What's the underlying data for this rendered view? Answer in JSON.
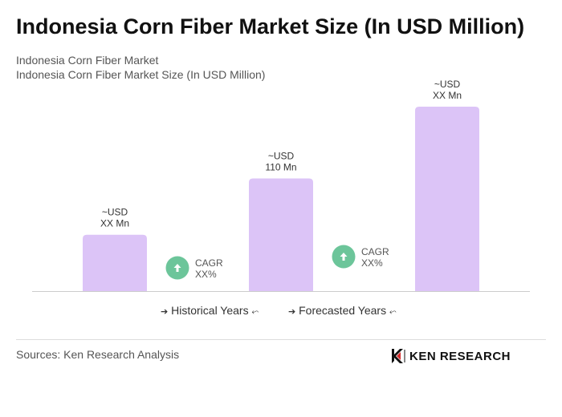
{
  "title": "Indonesia Corn Fiber Market Size (In USD Million)",
  "subtitle_line1": "Indonesia Corn Fiber Market",
  "subtitle_line2": "Indonesia Corn Fiber Market Size (In USD Million)",
  "chart_data": {
    "type": "bar",
    "title": "Indonesia Corn Fiber Market Size (In USD Million)",
    "categories": [
      "",
      "",
      ""
    ],
    "values": [
      55,
      110,
      180
    ],
    "bar_labels": [
      [
        "~USD",
        "XX Mn"
      ],
      [
        "~USD",
        "110 Mn"
      ],
      [
        "~USD",
        "XX Mn"
      ]
    ],
    "bar_color": "#dcc4f7",
    "cagr_badges": [
      {
        "line1": "CAGR",
        "line2": "XX%"
      },
      {
        "line1": "CAGR",
        "line2": "XX%"
      }
    ],
    "badge_color": "#6cc59a",
    "ylim": [
      0,
      180
    ],
    "grid": false,
    "legend": {
      "placement": "bottom-center",
      "historical": "Historical Years",
      "forecasted": "Forecasted Years",
      "arrow_left": "➔",
      "arrow_right": "⬿"
    }
  },
  "footer": {
    "sources": "Sources: Ken Research Analysis",
    "brand": "KEN RESEARCH"
  }
}
